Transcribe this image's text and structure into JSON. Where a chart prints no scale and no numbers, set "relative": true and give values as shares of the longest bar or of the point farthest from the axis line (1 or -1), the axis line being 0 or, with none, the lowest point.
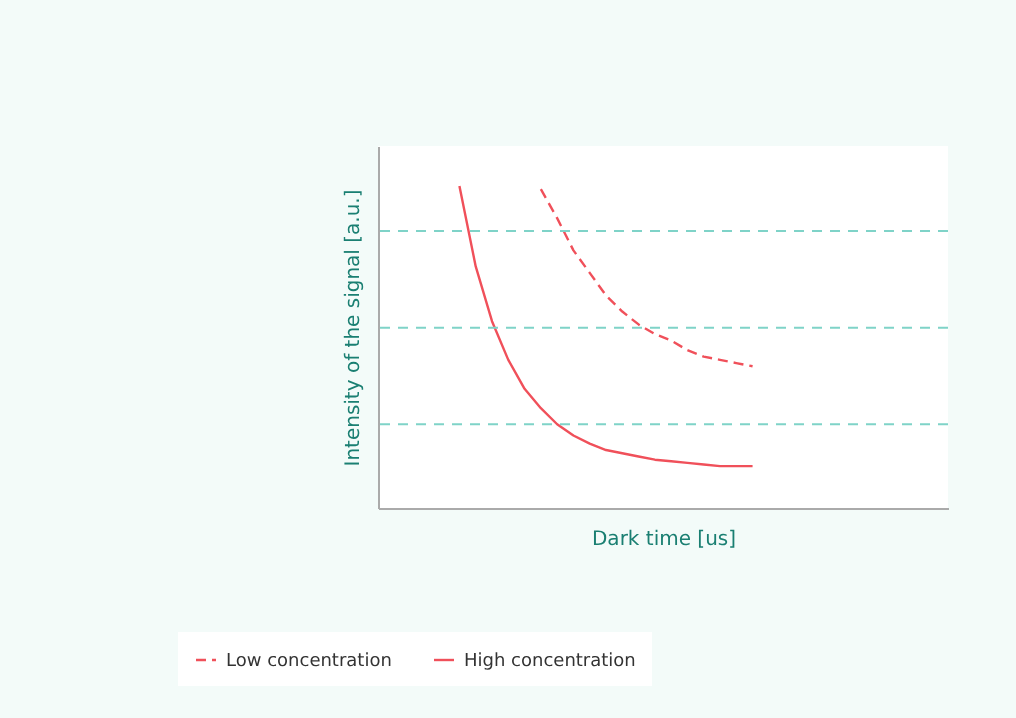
{
  "chart_data": {
    "type": "line",
    "xlabel": "Dark time [us]",
    "ylabel": "Intensity of the signal [a.u.]",
    "relative": true,
    "legend": "bottom left",
    "ref_lines": [
      {
        "axis": "y",
        "value": 0.26,
        "color": "#7fd3c8",
        "line_style": "dashed"
      },
      {
        "axis": "y",
        "value": 0.56,
        "color": "#7fd3c8",
        "line_style": "dashed"
      },
      {
        "axis": "y",
        "value": 0.86,
        "color": "#7fd3c8",
        "line_style": "dashed"
      }
    ],
    "categories": [
      null,
      null,
      null,
      null,
      null,
      null,
      null,
      null,
      null,
      null,
      null,
      null,
      null,
      null,
      null,
      null,
      null,
      null,
      null,
      null,
      null,
      null,
      null,
      null,
      null,
      null,
      null,
      null,
      null,
      null,
      null,
      null,
      null,
      null,
      null,
      null
    ],
    "series": [
      {
        "name": "Low concentration",
        "color": "#f0505a",
        "line_style": "dashed",
        "values": [
          null,
          null,
          null,
          null,
          null,
          null,
          null,
          null,
          null,
          null,
          0.99,
          0.9,
          0.8,
          0.73,
          0.66,
          0.61,
          0.57,
          0.54,
          0.52,
          0.49,
          0.47,
          0.46,
          0.45,
          0.44,
          null,
          null,
          null,
          null,
          null,
          null,
          null,
          null,
          null,
          null,
          null,
          null
        ]
      },
      {
        "name": "High concentration",
        "color": "#f0505a",
        "line_style": "solid",
        "values": [
          null,
          null,
          null,
          null,
          null,
          1.0,
          0.75,
          0.58,
          0.46,
          0.37,
          0.31,
          0.26,
          0.225,
          0.2,
          0.18,
          0.17,
          0.16,
          0.15,
          0.145,
          0.14,
          0.135,
          0.13,
          0.13,
          0.13,
          null,
          null,
          null,
          null,
          null,
          null,
          null,
          null,
          null,
          null,
          null,
          null
        ]
      }
    ]
  }
}
